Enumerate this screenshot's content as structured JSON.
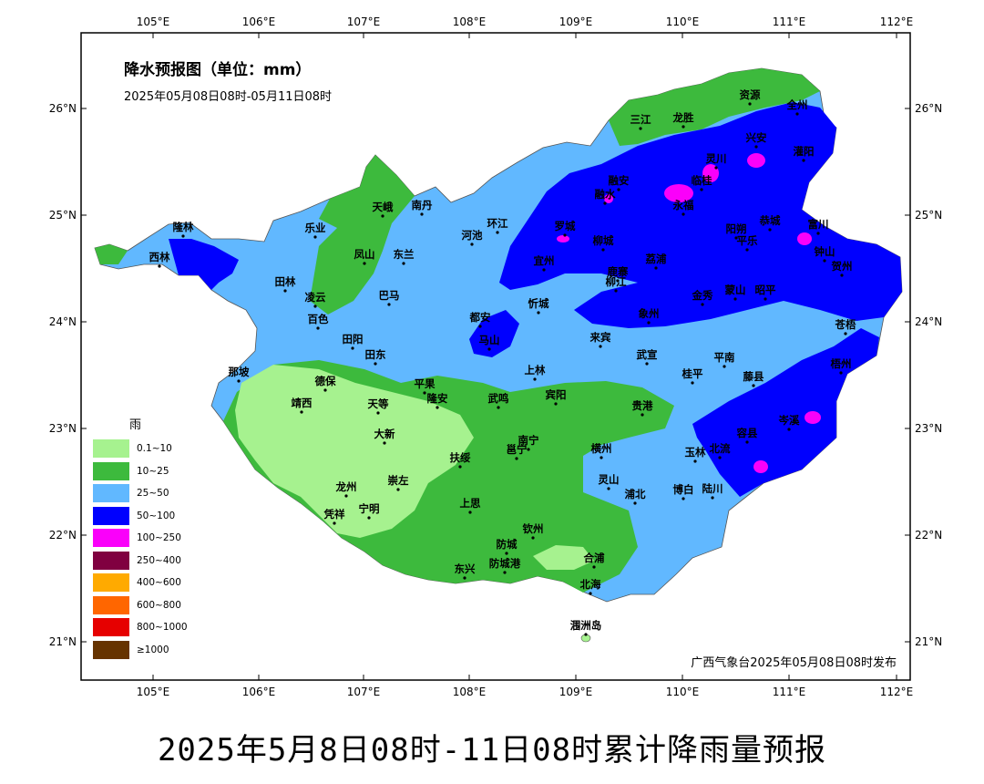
{
  "map": {
    "title": "降水预报图（单位：mm）",
    "period": "2025年05月08日08时-05月11日08时",
    "issuer": "广西气象台2025年05月08日08时发布",
    "caption": "2025年5月8日08时-11日08时累计降雨量预报"
  },
  "axes": {
    "lon_labels": [
      "105°E",
      "106°E",
      "107°E",
      "108°E",
      "109°E",
      "110°E",
      "111°E",
      "112°E"
    ],
    "lat_labels": [
      "26°N",
      "25°N",
      "24°N",
      "23°N",
      "22°N",
      "21°N"
    ]
  },
  "legend": {
    "title": "雨",
    "items": [
      {
        "label": "0.1~10",
        "color": "#a6f28f"
      },
      {
        "label": "10~25",
        "color": "#3dba3d"
      },
      {
        "label": "25~50",
        "color": "#61b8ff"
      },
      {
        "label": "50~100",
        "color": "#0000fe"
      },
      {
        "label": "100~250",
        "color": "#fa00fa"
      },
      {
        "label": "250~400",
        "color": "#800040"
      },
      {
        "label": "400~600",
        "color": "#ffaa00"
      },
      {
        "label": "600~800",
        "color": "#ff6600"
      },
      {
        "label": "800~1000",
        "color": "#e60000"
      },
      {
        "label": "≥1000",
        "color": "#663300"
      }
    ]
  },
  "cities": [
    {
      "name": "三江"
    },
    {
      "name": "龙胜"
    },
    {
      "name": "资源"
    },
    {
      "name": "全州"
    },
    {
      "name": "兴安"
    },
    {
      "name": "灌阳"
    },
    {
      "name": "融安"
    },
    {
      "name": "融水"
    },
    {
      "name": "临桂"
    },
    {
      "name": "永福"
    },
    {
      "name": "灵川"
    },
    {
      "name": "阳朔"
    },
    {
      "name": "恭城"
    },
    {
      "name": "富川"
    },
    {
      "name": "平乐"
    },
    {
      "name": "钟山"
    },
    {
      "name": "荔浦"
    },
    {
      "name": "贺州"
    },
    {
      "name": "蒙山"
    },
    {
      "name": "昭平"
    },
    {
      "name": "金秀"
    },
    {
      "name": "象州"
    },
    {
      "name": "柳城"
    },
    {
      "name": "柳江"
    },
    {
      "name": "鹿寨"
    },
    {
      "name": "宜州"
    },
    {
      "name": "罗城"
    },
    {
      "name": "忻城"
    },
    {
      "name": "来宾"
    },
    {
      "name": "武宣"
    },
    {
      "name": "桂平"
    },
    {
      "name": "平南"
    },
    {
      "name": "藤县"
    },
    {
      "name": "苍梧"
    },
    {
      "name": "梧州"
    },
    {
      "name": "岑溪"
    },
    {
      "name": "容县"
    },
    {
      "name": "北流"
    },
    {
      "name": "玉林"
    },
    {
      "name": "博白"
    },
    {
      "name": "陆川"
    },
    {
      "name": "浦北"
    },
    {
      "name": "灵山"
    },
    {
      "name": "横州"
    },
    {
      "name": "贵港"
    },
    {
      "name": "宾阳"
    },
    {
      "name": "上林"
    },
    {
      "name": "武鸣"
    },
    {
      "name": "马山"
    },
    {
      "name": "都安"
    },
    {
      "name": "河池"
    },
    {
      "name": "环江"
    },
    {
      "name": "南丹"
    },
    {
      "name": "天峨"
    },
    {
      "name": "东兰"
    },
    {
      "name": "凤山"
    },
    {
      "name": "乐业"
    },
    {
      "name": "隆林"
    },
    {
      "name": "西林"
    },
    {
      "name": "田林"
    },
    {
      "name": "凌云"
    },
    {
      "name": "巴马"
    },
    {
      "name": "百色"
    },
    {
      "name": "田阳"
    },
    {
      "name": "田东"
    },
    {
      "name": "平果"
    },
    {
      "name": "隆安"
    },
    {
      "name": "德保"
    },
    {
      "name": "那坡"
    },
    {
      "name": "靖西"
    },
    {
      "name": "天等"
    },
    {
      "name": "大新"
    },
    {
      "name": "南宁"
    },
    {
      "name": "邕宁"
    },
    {
      "name": "扶绥"
    },
    {
      "name": "崇左"
    },
    {
      "name": "龙州"
    },
    {
      "name": "凭祥"
    },
    {
      "name": "宁明"
    },
    {
      "name": "上思"
    },
    {
      "name": "钦州"
    },
    {
      "name": "防城"
    },
    {
      "name": "防城港"
    },
    {
      "name": "东兴"
    },
    {
      "name": "合浦"
    },
    {
      "name": "北海"
    },
    {
      "name": "涠洲岛"
    }
  ]
}
